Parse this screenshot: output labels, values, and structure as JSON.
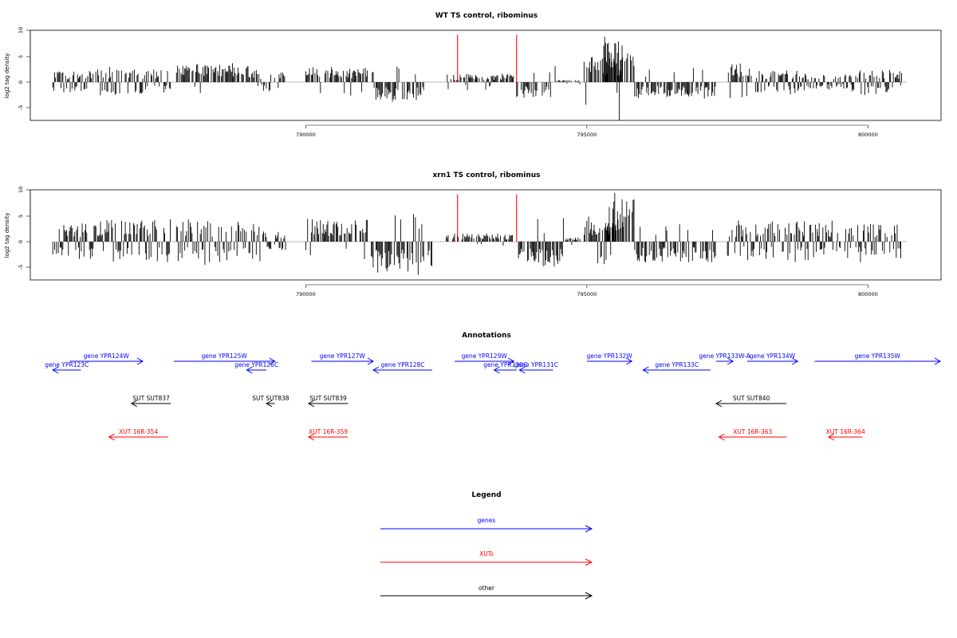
{
  "chart_data": [
    {
      "type": "bar",
      "title": "WT TS control, ribominus",
      "ylabel": "log2 tag density",
      "xlabel": "",
      "ylim": [
        -7.5,
        10
      ],
      "xlim": [
        785100,
        801300
      ],
      "x_ticks": [
        790000,
        795000,
        800000
      ],
      "y_ticks": [
        -5,
        0,
        5,
        10
      ],
      "y_tick_labels": [
        "-5",
        "0",
        "5",
        "10"
      ],
      "markers": [
        {
          "x": 792700,
          "color": "#ff0000",
          "value": 9.2
        },
        {
          "x": 793750,
          "color": "#ff0000",
          "value": 9.2
        }
      ],
      "bar_color": "#000000",
      "segments": [
        {
          "x0": 785500,
          "x1": 786200,
          "mag": 2.2,
          "sign": "mixed"
        },
        {
          "x0": 786200,
          "x1": 787100,
          "mag": 2.6,
          "sign": "mixed"
        },
        {
          "x0": 787100,
          "x1": 787600,
          "mag": 2.4,
          "sign": "mixed"
        },
        {
          "x0": 787700,
          "x1": 789150,
          "mag": 3.4,
          "sign": "pos"
        },
        {
          "x0": 789150,
          "x1": 789650,
          "mag": 2.0,
          "sign": "mixed"
        },
        {
          "x0": 790000,
          "x1": 791100,
          "mag": 3.0,
          "sign": "pos"
        },
        {
          "x0": 791150,
          "x1": 792100,
          "mag": 3.5,
          "sign": "neg"
        },
        {
          "x0": 792500,
          "x1": 793700,
          "mag": 1.6,
          "sign": "pos"
        },
        {
          "x0": 793750,
          "x1": 794450,
          "mag": 3.2,
          "sign": "neg"
        },
        {
          "x0": 794450,
          "x1": 794900,
          "mag": 0.4,
          "sign": "pos"
        },
        {
          "x0": 794950,
          "x1": 795650,
          "mag": 5.0,
          "sign": "pos"
        },
        {
          "x0": 795300,
          "x1": 795850,
          "mag": 8.6,
          "sign": "pos"
        },
        {
          "x0": 795850,
          "x1": 797300,
          "mag": 2.8,
          "sign": "neg"
        },
        {
          "x0": 797500,
          "x1": 797950,
          "mag": 3.6,
          "sign": "pos"
        },
        {
          "x0": 798000,
          "x1": 798900,
          "mag": 2.4,
          "sign": "mixed"
        },
        {
          "x0": 798900,
          "x1": 799700,
          "mag": 1.4,
          "sign": "mixed"
        },
        {
          "x0": 799700,
          "x1": 800600,
          "mag": 2.6,
          "sign": "mixed"
        }
      ]
    },
    {
      "type": "bar",
      "title": "xrn1 TS control, ribominus",
      "ylabel": "log2 tag density",
      "xlabel": "",
      "ylim": [
        -7.5,
        10
      ],
      "xlim": [
        785100,
        801300
      ],
      "x_ticks": [
        790000,
        795000,
        800000
      ],
      "y_ticks": [
        -5,
        0,
        5,
        10
      ],
      "y_tick_labels": [
        "-5",
        "0",
        "5",
        "10"
      ],
      "markers": [
        {
          "x": 792700,
          "color": "#ff0000",
          "value": 9.2
        },
        {
          "x": 793750,
          "color": "#ff0000",
          "value": 9.2
        }
      ],
      "bar_color": "#000000",
      "segments": [
        {
          "x0": 785500,
          "x1": 786300,
          "mag": 3.6,
          "sign": "mixed"
        },
        {
          "x0": 786300,
          "x1": 787600,
          "mag": 4.2,
          "sign": "mixed"
        },
        {
          "x0": 787700,
          "x1": 789200,
          "mag": 4.0,
          "sign": "mixed"
        },
        {
          "x0": 789200,
          "x1": 789650,
          "mag": 2.0,
          "sign": "mixed"
        },
        {
          "x0": 790000,
          "x1": 791100,
          "mag": 4.5,
          "sign": "pos"
        },
        {
          "x0": 791150,
          "x1": 792300,
          "mag": 6.0,
          "sign": "neg"
        },
        {
          "x0": 792500,
          "x1": 793700,
          "mag": 1.6,
          "sign": "pos"
        },
        {
          "x0": 793750,
          "x1": 794600,
          "mag": 5.0,
          "sign": "neg"
        },
        {
          "x0": 794600,
          "x1": 794900,
          "mag": 0.8,
          "sign": "pos"
        },
        {
          "x0": 794950,
          "x1": 795650,
          "mag": 4.5,
          "sign": "pos"
        },
        {
          "x0": 795300,
          "x1": 795850,
          "mag": 8.5,
          "sign": "pos"
        },
        {
          "x0": 795850,
          "x1": 797300,
          "mag": 4.0,
          "sign": "neg"
        },
        {
          "x0": 797500,
          "x1": 798200,
          "mag": 3.6,
          "sign": "mixed"
        },
        {
          "x0": 798200,
          "x1": 799100,
          "mag": 4.0,
          "sign": "mixed"
        },
        {
          "x0": 799100,
          "x1": 800600,
          "mag": 3.6,
          "sign": "mixed"
        }
      ]
    }
  ],
  "annotations": {
    "title": "Annotations",
    "colors": {
      "genes": "#0000ff",
      "XUTs": "#ff0000",
      "other": "#000000"
    },
    "features": [
      {
        "label": "gene YPR124W",
        "kind": "genes",
        "start": 785800,
        "end": 787100,
        "strand": "+",
        "row": 0
      },
      {
        "label": "gene YPR123C",
        "kind": "genes",
        "start": 785500,
        "end": 786000,
        "strand": "-",
        "row": 1
      },
      {
        "label": "gene YPR125W",
        "kind": "genes",
        "start": 787650,
        "end": 789450,
        "strand": "+",
        "row": 0
      },
      {
        "label": "gene YPR126C",
        "kind": "genes",
        "start": 788950,
        "end": 789300,
        "strand": "-",
        "row": 1
      },
      {
        "label": "gene YPR127W",
        "kind": "genes",
        "start": 790100,
        "end": 791200,
        "strand": "+",
        "row": 0
      },
      {
        "label": "gene YPR128C",
        "kind": "genes",
        "start": 791200,
        "end": 792250,
        "strand": "-",
        "row": 1
      },
      {
        "label": "gene YPR129W",
        "kind": "genes",
        "start": 792650,
        "end": 793700,
        "strand": "+",
        "row": 0
      },
      {
        "label": "gene YPR130C",
        "kind": "genes",
        "start": 793350,
        "end": 793750,
        "strand": "-",
        "row": 1
      },
      {
        "label": "gene YPR131C",
        "kind": "genes",
        "start": 793800,
        "end": 794400,
        "strand": "-",
        "row": 1
      },
      {
        "label": "gene YPR132W",
        "kind": "genes",
        "start": 795000,
        "end": 795800,
        "strand": "+",
        "row": 0
      },
      {
        "label": "gene YPR133C",
        "kind": "genes",
        "start": 796000,
        "end": 797200,
        "strand": "-",
        "row": 1
      },
      {
        "label": "gene YPR133W-A",
        "kind": "genes",
        "start": 797300,
        "end": 797600,
        "strand": "+",
        "row": 0
      },
      {
        "label": "gene YPR134W",
        "kind": "genes",
        "start": 797850,
        "end": 798750,
        "strand": "+",
        "row": 0
      },
      {
        "label": "gene YPR135W",
        "kind": "genes",
        "start": 799050,
        "end": 801300,
        "strand": "+",
        "row": 0
      },
      {
        "label": "SUT SUT837",
        "kind": "other",
        "start": 786900,
        "end": 787600,
        "strand": "-",
        "row": 2
      },
      {
        "label": "SUT SUT838",
        "kind": "other",
        "start": 789300,
        "end": 789450,
        "strand": "-",
        "row": 2
      },
      {
        "label": "SUT SUT839",
        "kind": "other",
        "start": 790050,
        "end": 790750,
        "strand": "-",
        "row": 2
      },
      {
        "label": "SUT SUT840",
        "kind": "other",
        "start": 797300,
        "end": 798550,
        "strand": "-",
        "row": 2
      },
      {
        "label": "XUT 16R-354",
        "kind": "XUTs",
        "start": 786500,
        "end": 787550,
        "strand": "-",
        "row": 3
      },
      {
        "label": "XUT 16R-359",
        "kind": "XUTs",
        "start": 790050,
        "end": 790750,
        "strand": "-",
        "row": 3
      },
      {
        "label": "XUT 16R-363",
        "kind": "XUTs",
        "start": 797350,
        "end": 798550,
        "strand": "-",
        "row": 3
      },
      {
        "label": "XUT 16R-364",
        "kind": "XUTs",
        "start": 799300,
        "end": 799900,
        "strand": "-",
        "row": 3
      }
    ]
  },
  "legend": {
    "title": "Legend",
    "items": [
      {
        "label": "genes",
        "color": "#0000ff"
      },
      {
        "label": "XUTs",
        "color": "#ff0000"
      },
      {
        "label": "other",
        "color": "#000000"
      }
    ]
  }
}
